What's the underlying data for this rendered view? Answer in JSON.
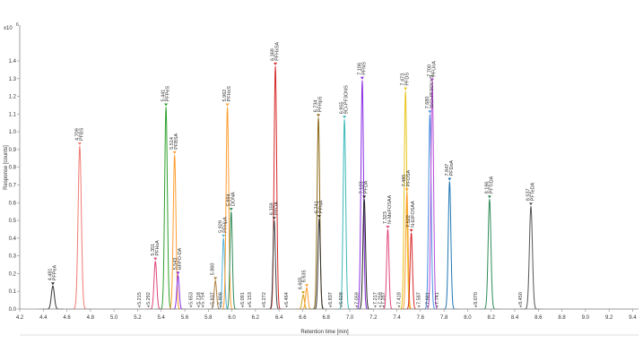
{
  "chart_data": {
    "type": "line",
    "title": "",
    "xlabel": "Retention time [min]",
    "ylabel": "Response [counts]",
    "y_exponent_label": "x10",
    "y_exponent_power": "6",
    "xlim": [
      4.2,
      9.45
    ],
    "ylim": [
      -0.04,
      1.5
    ],
    "x_ticks": [
      "4.2",
      "4.4",
      "4.6",
      "4.8",
      "5.0",
      "5.2",
      "5.4",
      "5.6",
      "5.8",
      "6.0",
      "6.2",
      "6.4",
      "6.6",
      "6.8",
      "7.0",
      "7.2",
      "7.4",
      "7.6",
      "7.8",
      "8.0",
      "8.2",
      "8.4",
      "8.6",
      "8.8",
      "9.0",
      "9.2",
      "9.4"
    ],
    "x_tick_values": [
      4.2,
      4.4,
      4.6,
      4.8,
      5.0,
      5.2,
      5.4,
      5.6,
      5.8,
      6.0,
      6.2,
      6.4,
      6.6,
      6.8,
      7.0,
      7.2,
      7.4,
      7.6,
      7.8,
      8.0,
      8.2,
      8.4,
      8.6,
      8.8,
      9.0,
      9.2,
      9.4
    ],
    "y_ticks": [
      "0.0",
      "0.1",
      "0.2",
      "0.3",
      "0.4",
      "0.5",
      "0.6",
      "0.7",
      "0.8",
      "0.9",
      "1.0",
      "1.1",
      "1.2",
      "1.3",
      "1.4"
    ],
    "y_tick_values": [
      0,
      0.1,
      0.2,
      0.3,
      0.4,
      0.5,
      0.6,
      0.7,
      0.8,
      0.9,
      1.0,
      1.1,
      1.2,
      1.3,
      1.4
    ],
    "grid": false,
    "series": [
      {
        "name": "PFPeA",
        "rt_label": "4.481",
        "rt": 4.481,
        "height": 0.13,
        "width": 0.028,
        "color": "#333333"
      },
      {
        "name": "PFBS",
        "rt_label": "4.709",
        "rt": 4.709,
        "height": 0.92,
        "width": 0.03,
        "color": "#f07b72"
      },
      {
        "name": "PFHxA",
        "rt_label": "5.351",
        "rt": 5.351,
        "height": 0.27,
        "width": 0.025,
        "color": "#e0457b"
      },
      {
        "name": "PFPeS",
        "rt_label": "5.441",
        "rt": 5.441,
        "height": 1.14,
        "width": 0.025,
        "color": "#2ca02c"
      },
      {
        "name": "PFBSA",
        "rt_label": "5.514",
        "rt": 5.514,
        "height": 0.87,
        "width": 0.025,
        "color": "#ff9d2e"
      },
      {
        "name": "HFPO-DA",
        "rt_label": "5.543",
        "rt": 5.543,
        "height": 0.19,
        "width": 0.022,
        "color": "#8a2be2"
      },
      {
        "name": "",
        "rt_label": "5.860",
        "rt": 5.86,
        "height": 0.16,
        "width": 0.022,
        "color": "#b08040"
      },
      {
        "name": "PFHpA",
        "rt_label": "5.929",
        "rt": 5.929,
        "height": 0.4,
        "width": 0.022,
        "color": "#4fb3d9"
      },
      {
        "name": "PFHxS",
        "rt_label": "5.962",
        "rt": 5.962,
        "height": 1.14,
        "width": 0.024,
        "color": "#ff9d2e"
      },
      {
        "name": "DONA",
        "rt_label": "5.994",
        "rt": 5.994,
        "height": 0.55,
        "width": 0.022,
        "color": "#2e8b57"
      },
      {
        "name": "PFHxSA",
        "rt_label": "6.369",
        "rt": 6.369,
        "height": 1.37,
        "width": 0.024,
        "color": "#d62728"
      },
      {
        "name": "PFOA",
        "rt_label": "6.359",
        "rt": 6.359,
        "height": 0.5,
        "width": 0.022,
        "color": "#444444"
      },
      {
        "name": "",
        "rt_label": "6.605",
        "rt": 6.605,
        "height": 0.08,
        "width": 0.022,
        "color": "#d4a017"
      },
      {
        "name": "",
        "rt_label": "6.635",
        "rt": 6.635,
        "height": 0.12,
        "width": 0.022,
        "color": "#ff9d2e"
      },
      {
        "name": "PFHpS",
        "rt_label": "6.734",
        "rt": 6.734,
        "height": 1.08,
        "width": 0.024,
        "color": "#8b6914"
      },
      {
        "name": "PFNA",
        "rt_label": "6.741",
        "rt": 6.741,
        "height": 0.51,
        "width": 0.022,
        "color": "#333333"
      },
      {
        "name": "9Cl-PF3ONS",
        "rt_label": "6.955",
        "rt": 6.955,
        "height": 1.07,
        "width": 0.024,
        "color": "#3cb8b8"
      },
      {
        "name": "PFNS",
        "rt_label": "7.106",
        "rt": 7.106,
        "height": 1.29,
        "width": 0.024,
        "color": "#8a2be2"
      },
      {
        "name": "PFDA",
        "rt_label": "7.123",
        "rt": 7.123,
        "height": 0.62,
        "width": 0.024,
        "color": "#222222"
      },
      {
        "name": "N-MeFOSAA",
        "rt_label": "7.323",
        "rt": 7.323,
        "height": 0.45,
        "width": 0.022,
        "color": "#e0457b"
      },
      {
        "name": "PFDS",
        "rt_label": "7.473",
        "rt": 7.473,
        "height": 1.23,
        "width": 0.024,
        "color": "#e8c41a"
      },
      {
        "name": "PFOSA",
        "rt_label": "7.485",
        "rt": 7.485,
        "height": 0.66,
        "width": 0.022,
        "color": "#ff9d2e"
      },
      {
        "name": "N-EtFOSAA",
        "rt_label": "7.522",
        "rt": 7.522,
        "height": 0.43,
        "width": 0.022,
        "color": "#d62728"
      },
      {
        "name": "11Cl-PF3OUdS",
        "rt_label": "7.680",
        "rt": 7.68,
        "height": 1.1,
        "width": 0.024,
        "color": "#4a90e2"
      },
      {
        "name": "PFUnA",
        "rt_label": "7.700",
        "rt": 7.7,
        "height": 1.28,
        "width": 0.024,
        "color": "#b84ad9"
      },
      {
        "name": "PFDoA",
        "rt_label": "7.847",
        "rt": 7.847,
        "height": 0.72,
        "width": 0.024,
        "color": "#1f77b4"
      },
      {
        "name": "PFTrDA",
        "rt_label": "8.186",
        "rt": 8.186,
        "height": 0.62,
        "width": 0.026,
        "color": "#2e8b57"
      },
      {
        "name": "PFTeDA",
        "rt_label": "8.537",
        "rt": 8.537,
        "height": 0.58,
        "width": 0.028,
        "color": "#555555"
      }
    ],
    "minor_labels": [
      {
        "rt_label": "5.215",
        "rt": 5.215
      },
      {
        "rt_label": "5.292",
        "rt": 5.292
      },
      {
        "rt_label": "5.653",
        "rt": 5.653
      },
      {
        "rt_label": "5.718",
        "rt": 5.718
      },
      {
        "rt_label": "5.754",
        "rt": 5.754
      },
      {
        "rt_label": "5.837",
        "rt": 5.837
      },
      {
        "rt_label": "5.906",
        "rt": 5.906
      },
      {
        "rt_label": "6.091",
        "rt": 6.091
      },
      {
        "rt_label": "6.153",
        "rt": 6.153
      },
      {
        "rt_label": "6.272",
        "rt": 6.272
      },
      {
        "rt_label": "6.464",
        "rt": 6.464
      },
      {
        "rt_label": "6.837",
        "rt": 6.837
      },
      {
        "rt_label": "6.928",
        "rt": 6.928
      },
      {
        "rt_label": "7.059",
        "rt": 7.059
      },
      {
        "rt_label": "7.217",
        "rt": 7.217
      },
      {
        "rt_label": "7.259",
        "rt": 7.259
      },
      {
        "rt_label": "7.287",
        "rt": 7.287
      },
      {
        "rt_label": "7.418",
        "rt": 7.418
      },
      {
        "rt_label": "7.587",
        "rt": 7.587
      },
      {
        "rt_label": "7.661",
        "rt": 7.661
      },
      {
        "rt_label": "7.741",
        "rt": 7.741
      },
      {
        "rt_label": "8.070",
        "rt": 8.07
      },
      {
        "rt_label": "8.450",
        "rt": 8.45
      }
    ]
  }
}
